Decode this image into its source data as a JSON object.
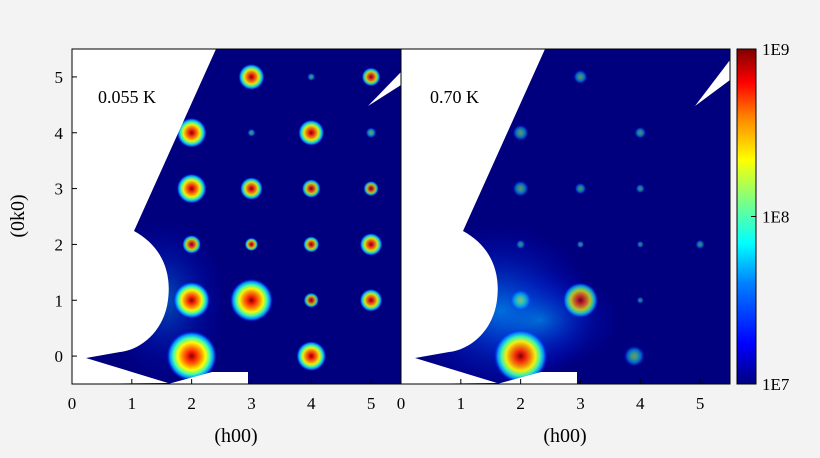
{
  "chart_data": [
    {
      "type": "heatmap",
      "annotation": "0.055 K",
      "xlabel": "(h00)",
      "ylabel": "(0k0)",
      "xlim": [
        0,
        5.5
      ],
      "ylim": [
        -0.5,
        5.5
      ],
      "x_ticks": [
        "0",
        "1",
        "2",
        "3",
        "4",
        "5"
      ],
      "y_ticks": [
        "0",
        "1",
        "2",
        "3",
        "4",
        "5"
      ],
      "peaks": [
        {
          "h": 2,
          "k": 0,
          "intensity": 1.0,
          "size": 1.6
        },
        {
          "h": 4,
          "k": 0,
          "intensity": 0.9,
          "size": 1.0
        },
        {
          "h": 2,
          "k": 1,
          "intensity": 0.95,
          "size": 1.2
        },
        {
          "h": 3,
          "k": 1,
          "intensity": 0.95,
          "size": 1.4
        },
        {
          "h": 4,
          "k": 1,
          "intensity": 0.6,
          "size": 0.6
        },
        {
          "h": 5,
          "k": 1,
          "intensity": 0.8,
          "size": 0.8
        },
        {
          "h": 2,
          "k": 2,
          "intensity": 0.7,
          "size": 0.7
        },
        {
          "h": 3,
          "k": 2,
          "intensity": 0.7,
          "size": 0.5
        },
        {
          "h": 4,
          "k": 2,
          "intensity": 0.7,
          "size": 0.6
        },
        {
          "h": 5,
          "k": 2,
          "intensity": 0.8,
          "size": 0.8
        },
        {
          "h": 2,
          "k": 3,
          "intensity": 0.9,
          "size": 1.0
        },
        {
          "h": 3,
          "k": 3,
          "intensity": 0.8,
          "size": 0.8
        },
        {
          "h": 4,
          "k": 3,
          "intensity": 0.7,
          "size": 0.7
        },
        {
          "h": 5,
          "k": 3,
          "intensity": 0.6,
          "size": 0.6
        },
        {
          "h": 2,
          "k": 4,
          "intensity": 0.9,
          "size": 1.0
        },
        {
          "h": 3,
          "k": 4,
          "intensity": 0.3,
          "size": 0.4
        },
        {
          "h": 4,
          "k": 4,
          "intensity": 0.85,
          "size": 0.9
        },
        {
          "h": 5,
          "k": 4,
          "intensity": 0.4,
          "size": 0.5
        },
        {
          "h": 3,
          "k": 5,
          "intensity": 0.85,
          "size": 0.9
        },
        {
          "h": 4,
          "k": 5,
          "intensity": 0.3,
          "size": 0.4
        },
        {
          "h": 5,
          "k": 5,
          "intensity": 0.7,
          "size": 0.7
        }
      ]
    },
    {
      "type": "heatmap",
      "annotation": "0.70 K",
      "xlabel": "(h00)",
      "xlim": [
        0,
        5.5
      ],
      "ylim": [
        -0.5,
        5.5
      ],
      "x_ticks": [
        "0",
        "1",
        "2",
        "3",
        "4",
        "5"
      ],
      "peaks": [
        {
          "h": 2,
          "k": 0,
          "intensity": 0.9,
          "size": 1.8
        },
        {
          "h": 3.9,
          "k": 0,
          "intensity": 0.35,
          "size": 1.0
        },
        {
          "h": 2,
          "k": 1,
          "intensity": 0.45,
          "size": 1.0
        },
        {
          "h": 3,
          "k": 1,
          "intensity": 0.6,
          "size": 1.4
        },
        {
          "h": 4,
          "k": 1,
          "intensity": 0.15,
          "size": 0.4
        },
        {
          "h": 2,
          "k": 2,
          "intensity": 0.2,
          "size": 0.5
        },
        {
          "h": 3,
          "k": 2,
          "intensity": 0.2,
          "size": 0.4
        },
        {
          "h": 4,
          "k": 2,
          "intensity": 0.15,
          "size": 0.4
        },
        {
          "h": 5,
          "k": 2,
          "intensity": 0.2,
          "size": 0.5
        },
        {
          "h": 2,
          "k": 3,
          "intensity": 0.3,
          "size": 0.8
        },
        {
          "h": 3,
          "k": 3,
          "intensity": 0.25,
          "size": 0.6
        },
        {
          "h": 4,
          "k": 3,
          "intensity": 0.2,
          "size": 0.5
        },
        {
          "h": 2,
          "k": 4,
          "intensity": 0.3,
          "size": 0.8
        },
        {
          "h": 4,
          "k": 4,
          "intensity": 0.25,
          "size": 0.6
        },
        {
          "h": 3,
          "k": 5,
          "intensity": 0.3,
          "size": 0.7
        }
      ]
    }
  ],
  "colorbar": {
    "scale": "log",
    "range": [
      "1E7",
      "1E9"
    ],
    "tick_labels": [
      "1E9",
      "1E8",
      "1E7"
    ],
    "colors": [
      "#00007f",
      "#0000ff",
      "#0080ff",
      "#00ffff",
      "#80ff80",
      "#ffff00",
      "#ff8000",
      "#ff0000",
      "#7f0000"
    ]
  },
  "colors": {
    "background": "#00007f",
    "page": "#f3f3f3",
    "blank": "#ffffff"
  }
}
